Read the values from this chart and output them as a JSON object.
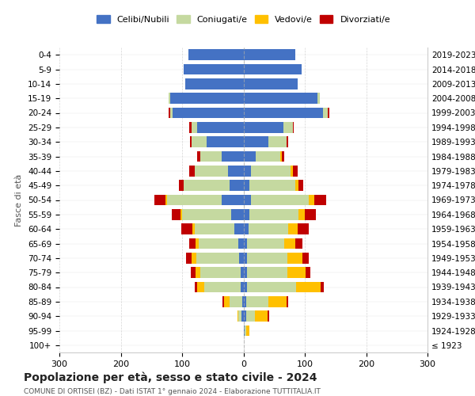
{
  "age_groups": [
    "100+",
    "95-99",
    "90-94",
    "85-89",
    "80-84",
    "75-79",
    "70-74",
    "65-69",
    "60-64",
    "55-59",
    "50-54",
    "45-49",
    "40-44",
    "35-39",
    "30-34",
    "25-29",
    "20-24",
    "15-19",
    "10-14",
    "5-9",
    "0-4"
  ],
  "birth_years": [
    "≤ 1923",
    "1924-1928",
    "1929-1933",
    "1934-1938",
    "1939-1943",
    "1944-1948",
    "1949-1953",
    "1954-1958",
    "1959-1963",
    "1964-1968",
    "1969-1973",
    "1974-1978",
    "1979-1983",
    "1984-1988",
    "1989-1993",
    "1994-1998",
    "1999-2003",
    "2004-2008",
    "2009-2013",
    "2014-2018",
    "2019-2023"
  ],
  "males": {
    "celibe": [
      0,
      0,
      3,
      2,
      4,
      5,
      7,
      8,
      15,
      20,
      35,
      22,
      25,
      35,
      60,
      75,
      115,
      120,
      95,
      98,
      90
    ],
    "coniugato": [
      0,
      0,
      5,
      20,
      60,
      65,
      70,
      65,
      65,
      80,
      90,
      75,
      55,
      35,
      25,
      10,
      5,
      2,
      0,
      0,
      0
    ],
    "vedovo": [
      0,
      0,
      2,
      10,
      12,
      8,
      8,
      5,
      3,
      2,
      2,
      0,
      0,
      0,
      0,
      0,
      0,
      0,
      0,
      0,
      0
    ],
    "divorziato": [
      0,
      0,
      0,
      2,
      3,
      8,
      8,
      10,
      18,
      15,
      18,
      8,
      8,
      5,
      2,
      3,
      2,
      0,
      0,
      0,
      0
    ]
  },
  "females": {
    "nubile": [
      0,
      2,
      4,
      5,
      6,
      6,
      6,
      6,
      8,
      10,
      12,
      10,
      12,
      20,
      40,
      65,
      130,
      120,
      88,
      95,
      85
    ],
    "coniugata": [
      0,
      3,
      15,
      35,
      80,
      65,
      65,
      60,
      65,
      80,
      95,
      75,
      65,
      40,
      30,
      15,
      8,
      5,
      0,
      0,
      0
    ],
    "vedova": [
      0,
      5,
      20,
      30,
      40,
      30,
      25,
      18,
      15,
      10,
      8,
      5,
      3,
      2,
      0,
      0,
      0,
      0,
      0,
      0,
      0
    ],
    "divorziata": [
      0,
      0,
      3,
      3,
      5,
      8,
      10,
      12,
      18,
      18,
      20,
      8,
      8,
      5,
      3,
      2,
      2,
      0,
      0,
      0,
      0
    ]
  },
  "colors": {
    "celibe": "#4472c4",
    "coniugato": "#c5d9a0",
    "vedovo": "#ffc000",
    "divorziato": "#c00000"
  },
  "title": "Popolazione per età, sesso e stato civile - 2024",
  "subtitle": "COMUNE DI ORTISEI (BZ) - Dati ISTAT 1° gennaio 2024 - Elaborazione TUTTITALIA.IT",
  "ylabel_left": "Fasce di età",
  "xlim": 300,
  "bg_color": "#ffffff",
  "grid_color": "#cccccc",
  "legend_labels": [
    "Celibi/Nubili",
    "Coniugati/e",
    "Vedovi/e",
    "Divorziati/e"
  ]
}
